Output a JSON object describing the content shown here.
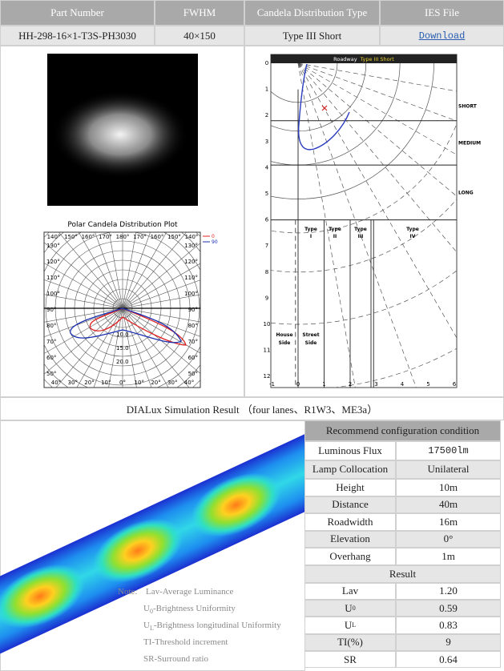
{
  "header": {
    "columns": [
      "Part Number",
      "FWHM",
      "Candela Distribution Type",
      "IES File"
    ],
    "row": [
      "HH-298-16×1-T3S-PH3030",
      "40×150",
      "Type III Short",
      "Download"
    ]
  },
  "polar_plot": {
    "title": "Polar Candela Distribution Plot",
    "legend": [
      "0",
      "90"
    ],
    "top_labels": [
      "140°",
      "150°",
      "160°",
      "170°",
      "180°",
      "170°",
      "160°",
      "150°",
      "140°"
    ],
    "left_labels": [
      "130°",
      "120°",
      "110°",
      "100°",
      "90°",
      "80°",
      "70°",
      "60°",
      "50°"
    ],
    "right_labels": [
      "130°",
      "120°",
      "110°",
      "100°",
      "90°",
      "80°",
      "70°",
      "60°",
      "50°"
    ],
    "bottom_labels": [
      "40°",
      "30°",
      "20°",
      "10°",
      "0°",
      "10°",
      "20°",
      "30°",
      "40°"
    ],
    "ring_labels": [
      "10.0",
      "15.0",
      "20.0"
    ]
  },
  "roadway": {
    "title_prefix": "Roadway",
    "title_type": "Type III  Short",
    "zones": [
      "SHORT",
      "MEDIUM",
      "LONG"
    ],
    "y_labels": [
      "0",
      "1",
      "2",
      "3",
      "4",
      "5",
      "6",
      "7",
      "8",
      "9",
      "10",
      "11",
      "12"
    ],
    "x_labels": [
      "-1",
      "0",
      "1",
      "2",
      "3",
      "4",
      "5",
      "6"
    ],
    "types": [
      [
        "Type",
        "I"
      ],
      [
        "Type",
        "II"
      ],
      [
        "Type",
        "III"
      ],
      [
        "Type",
        "IV"
      ]
    ],
    "sides": [
      [
        "House",
        "Side"
      ],
      [
        "Street",
        "Side"
      ]
    ]
  },
  "simulation": {
    "title": "DIALux Simulation Result （four lanes、R1W3、ME3a）",
    "note_prefix": "Note:",
    "notes": [
      {
        "label": "Lav",
        "desc": "-Average Luminance"
      },
      {
        "label": "U",
        "sub": "0",
        "desc": "-Brightness Uniformity"
      },
      {
        "label": "U",
        "sub": "L",
        "desc": "-Brightness longitudinal Uniformity"
      },
      {
        "label": "TI",
        "desc": "-Threshold increment"
      },
      {
        "label": "SR",
        "desc": "-Surround ratio"
      }
    ]
  },
  "configuration": {
    "title": "Recommend configuration condition",
    "rows": [
      {
        "label": "Luminous Flux",
        "value": "17500lm"
      },
      {
        "label": "Lamp Collocation",
        "value": "Unilateral"
      },
      {
        "label": "Height",
        "value": "10m"
      },
      {
        "label": "Distance",
        "value": "40m"
      },
      {
        "label": "Roadwidth",
        "value": "16m"
      },
      {
        "label": "Elevation",
        "value": "0°"
      },
      {
        "label": "Overhang",
        "value": "1m"
      }
    ],
    "result_title": "Result",
    "results": [
      {
        "label": "Lav",
        "value": "1.20"
      },
      {
        "label": "U",
        "sub": "0",
        "value": "0.59"
      },
      {
        "label": "U",
        "sub": "L",
        "value": "0.83"
      },
      {
        "label": "TI(%)",
        "value": "9"
      },
      {
        "label": "SR",
        "value": "0.64"
      }
    ]
  }
}
